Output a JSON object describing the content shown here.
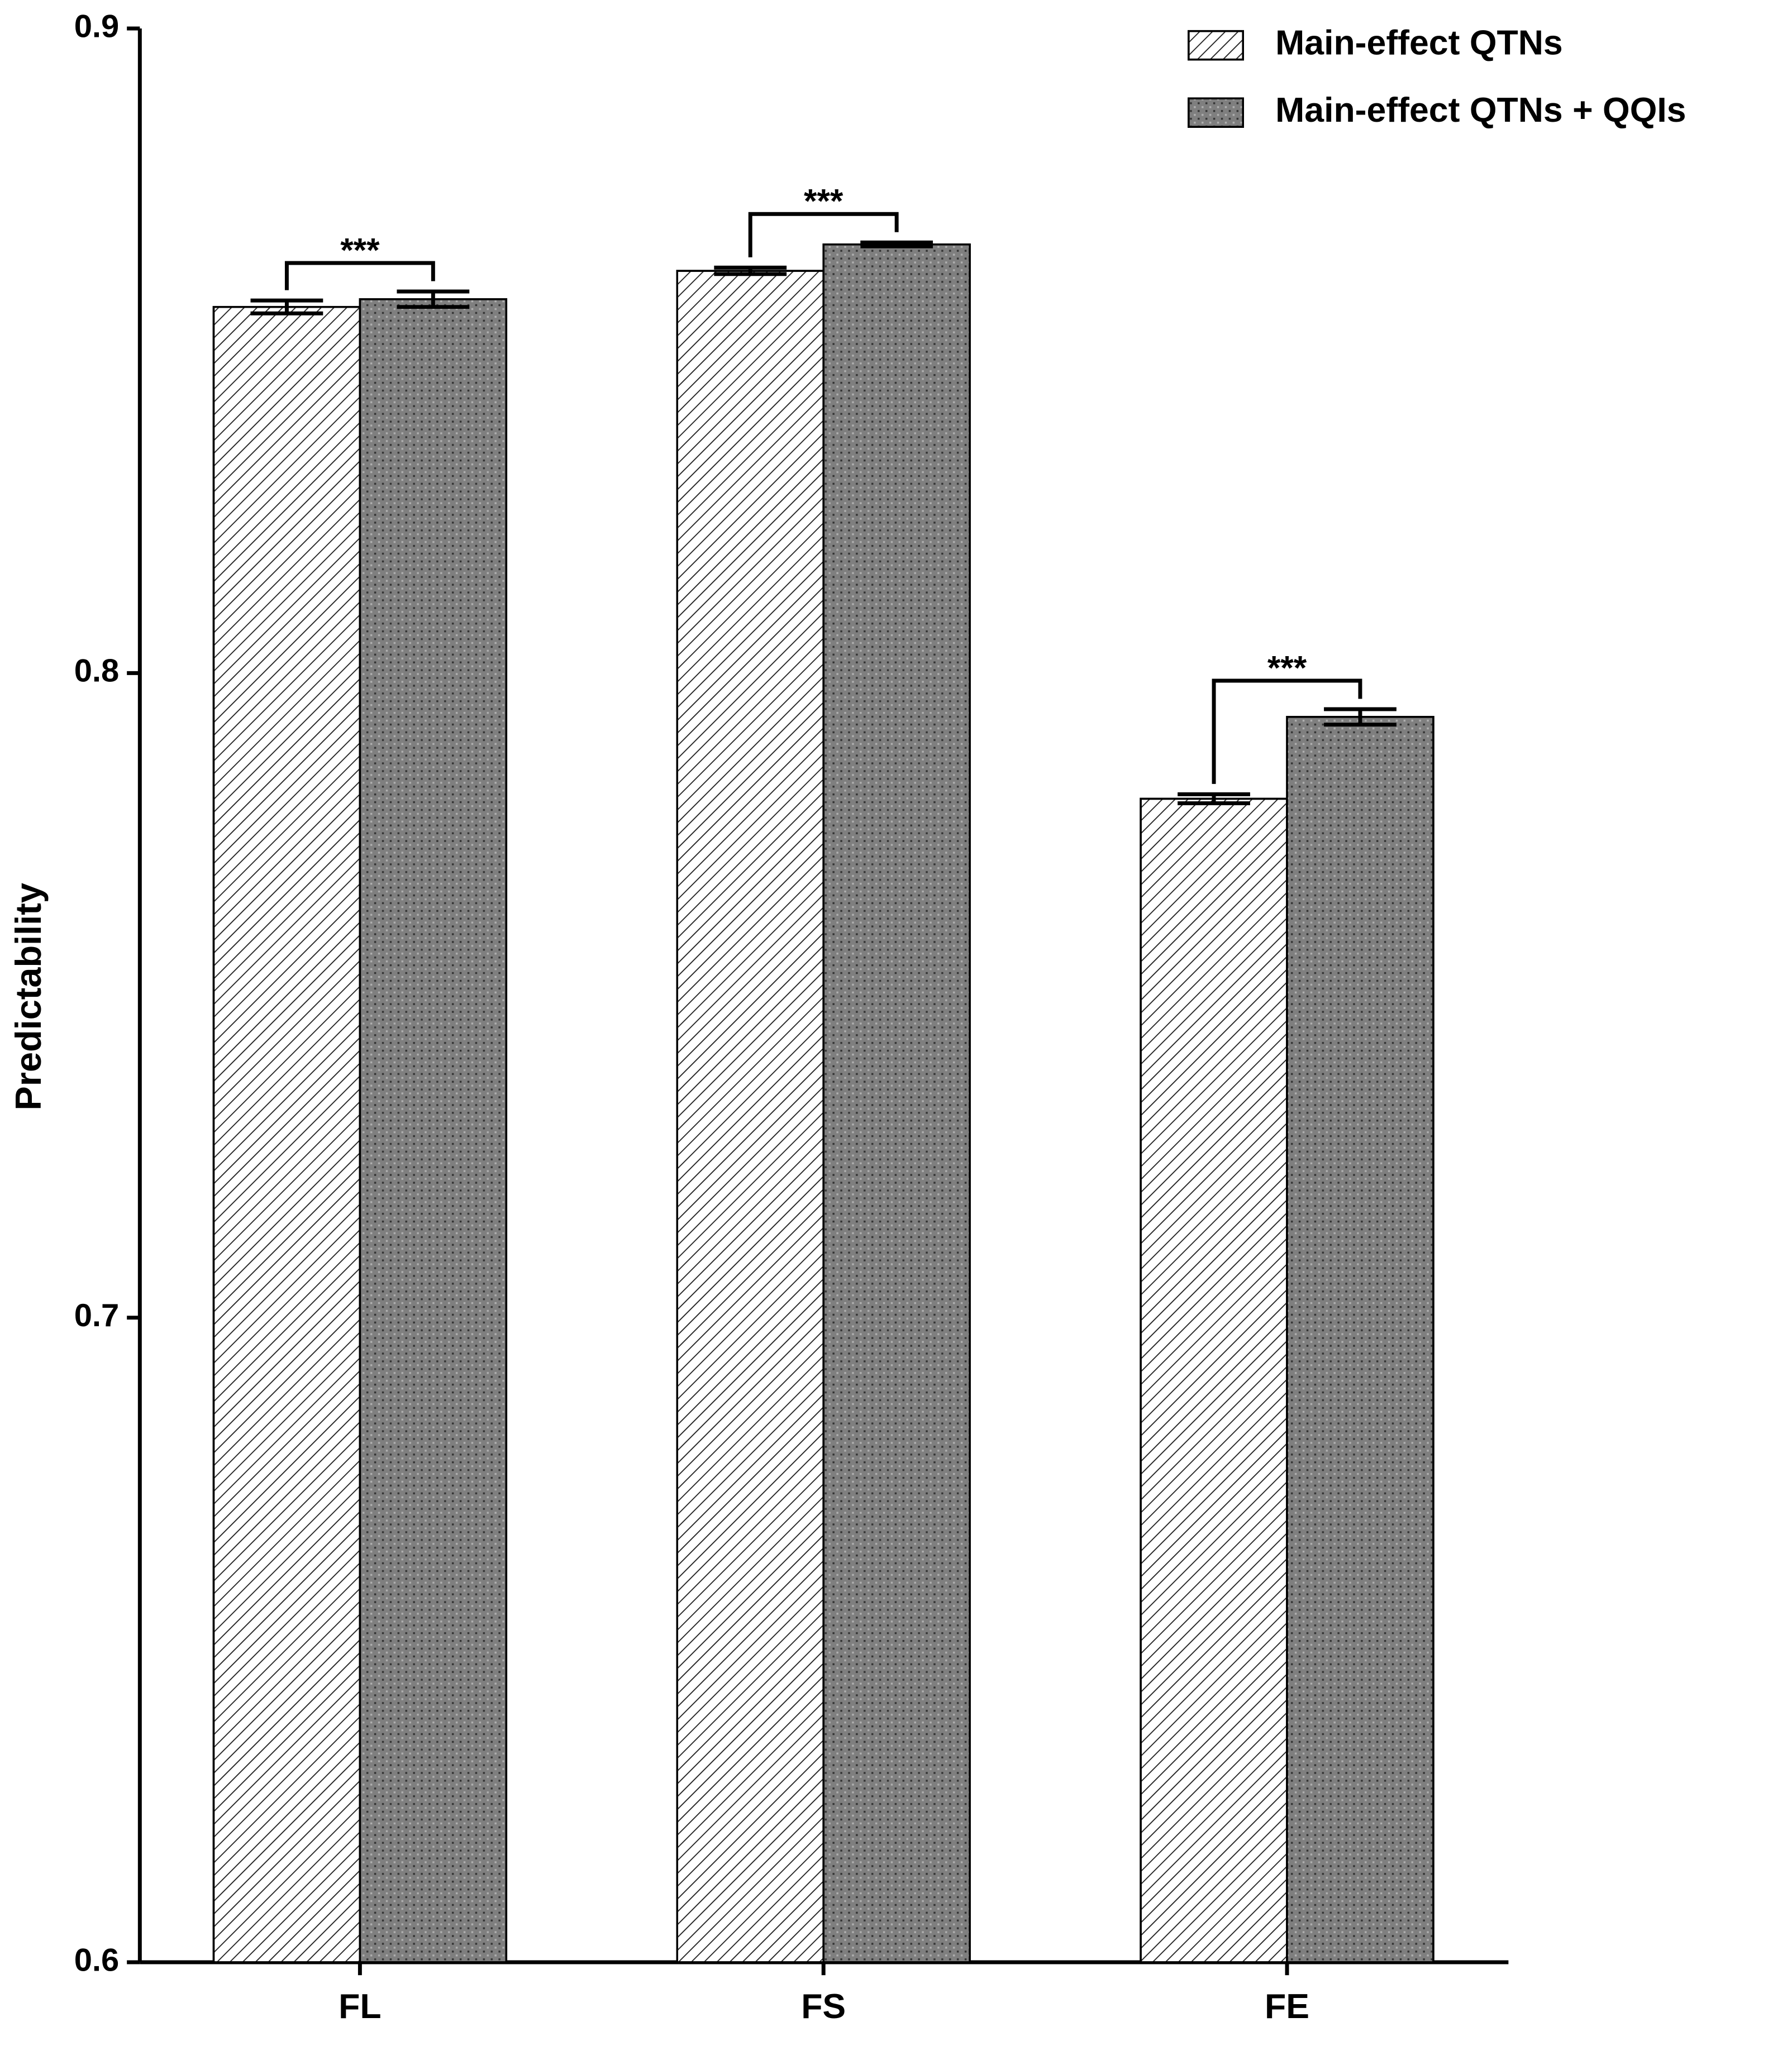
{
  "chart_data": {
    "type": "bar",
    "y_label": "Predictability",
    "categories": [
      "FL",
      "FS",
      "FE"
    ],
    "series": [
      {
        "name": "Main-effect QTNs",
        "color": "#ffffff",
        "pattern": "hatch",
        "values": [
          0.8568,
          0.8624,
          0.7805
        ],
        "errors": [
          0.001,
          0.0005,
          0.0007
        ]
      },
      {
        "name": "Main-effect QTNs + QQIs",
        "color": "#7f7f7f",
        "pattern": "dots",
        "values": [
          0.858,
          0.8665,
          0.7932
        ],
        "errors": [
          0.0012,
          0.0003,
          0.0012
        ]
      }
    ],
    "annotations": [
      "***",
      "***",
      "***"
    ],
    "ylim": [
      0.6,
      0.9
    ],
    "yticks": [
      0.6,
      0.7,
      0.8,
      0.9
    ],
    "legend": "top-right"
  }
}
